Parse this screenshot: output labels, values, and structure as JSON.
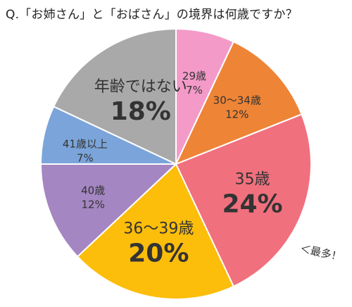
{
  "title": "Q.「お姉さん」と「おばさん」の境界は何歳ですか？",
  "chart_data": {
    "type": "pie",
    "slices": [
      {
        "name": "29歳",
        "value": 7,
        "label": "7%",
        "color": "#F49AC8"
      },
      {
        "name": "30〜34歳",
        "value": 12,
        "label": "12%",
        "color": "#EE8436"
      },
      {
        "name": "35歳",
        "value": 24,
        "label": "24%",
        "color": "#F1707E"
      },
      {
        "name": "36〜39歳",
        "value": 20,
        "label": "20%",
        "color": "#FCBD0B"
      },
      {
        "name": "40歳",
        "value": 12,
        "label": "12%",
        "color": "#A486C2"
      },
      {
        "name": "41歳以上",
        "value": 7,
        "label": "7%",
        "color": "#7BA5DA"
      },
      {
        "name": "年齢ではない",
        "value": 18,
        "label": "18%",
        "color": "#A9A9A9"
      }
    ],
    "annotation": "＜最多！"
  }
}
